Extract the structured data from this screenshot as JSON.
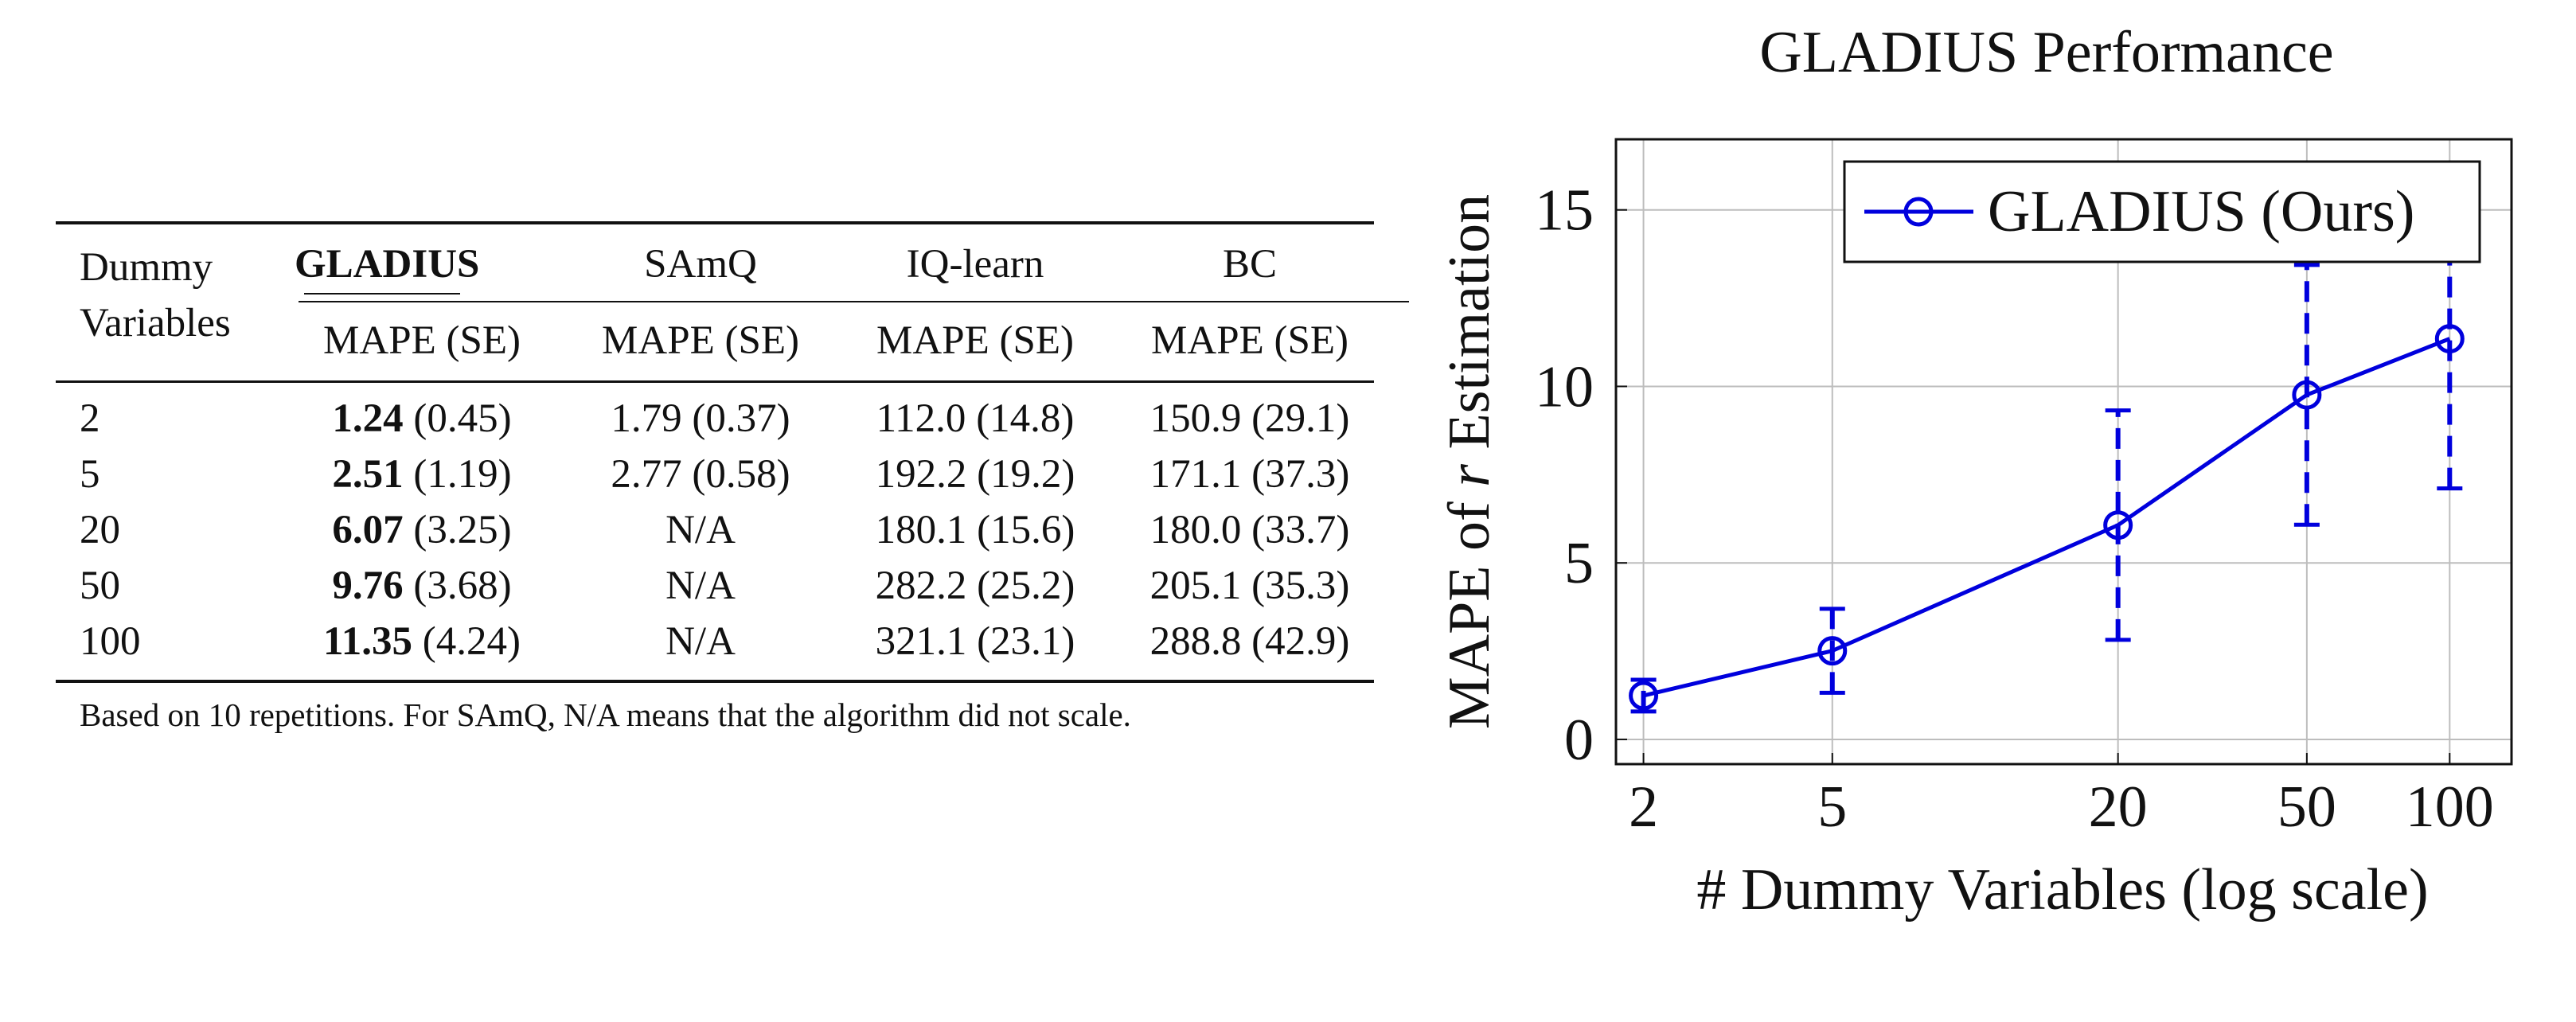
{
  "table": {
    "header_col0_line1": "Dummy",
    "header_col0_line2": "Variables",
    "methods": [
      "GLADIUS",
      "SAmQ",
      "IQ-learn",
      "BC"
    ],
    "metric": "MAPE (SE)",
    "rows": [
      {
        "dummy": "2",
        "cells": [
          {
            "v": "1.24",
            "se": "(0.45)"
          },
          {
            "v": "1.79",
            "se": "(0.37)"
          },
          {
            "v": "112.0",
            "se": "(14.8)"
          },
          {
            "v": "150.9",
            "se": "(29.1)"
          }
        ]
      },
      {
        "dummy": "5",
        "cells": [
          {
            "v": "2.51",
            "se": "(1.19)"
          },
          {
            "v": "2.77",
            "se": "(0.58)"
          },
          {
            "v": "192.2",
            "se": "(19.2)"
          },
          {
            "v": "171.1",
            "se": "(37.3)"
          }
        ]
      },
      {
        "dummy": "20",
        "cells": [
          {
            "v": "6.07",
            "se": "(3.25)"
          },
          {
            "v": "N/A",
            "se": ""
          },
          {
            "v": "180.1",
            "se": "(15.6)"
          },
          {
            "v": "180.0",
            "se": "(33.7)"
          }
        ]
      },
      {
        "dummy": "50",
        "cells": [
          {
            "v": "9.76",
            "se": "(3.68)"
          },
          {
            "v": "N/A",
            "se": ""
          },
          {
            "v": "282.2",
            "se": "(25.2)"
          },
          {
            "v": "205.1",
            "se": "(35.3)"
          }
        ]
      },
      {
        "dummy": "100",
        "cells": [
          {
            "v": "11.35",
            "se": "(4.24)"
          },
          {
            "v": "N/A",
            "se": ""
          },
          {
            "v": "321.1",
            "se": "(23.1)"
          },
          {
            "v": "288.8",
            "se": "(42.9)"
          }
        ]
      }
    ],
    "footnote": "Based on 10 repetitions. For SAmQ, N/A means that the algorithm did not scale."
  },
  "chart_data": {
    "type": "line",
    "title": "GLADIUS Performance",
    "xlabel": "# Dummy Variables (log scale)",
    "ylabel_prefix": "MAPE of ",
    "ylabel_var": "r",
    "ylabel_suffix": " Estimation",
    "x_scale": "log",
    "xticks": [
      2,
      5,
      20,
      50,
      100
    ],
    "yticks": [
      0,
      5,
      10,
      15
    ],
    "xlim": [
      1.75,
      135
    ],
    "ylim": [
      -0.7,
      17
    ],
    "grid": true,
    "legend_position": "top-right",
    "series": [
      {
        "name": "GLADIUS (Ours)",
        "color": "#0000dd",
        "x": [
          2,
          5,
          20,
          50,
          100
        ],
        "y": [
          1.24,
          2.51,
          6.07,
          9.76,
          11.35
        ],
        "err_low": [
          0.79,
          1.32,
          2.82,
          6.08,
          7.11
        ],
        "err_high": [
          1.69,
          3.7,
          9.32,
          13.44,
          15.59
        ]
      }
    ]
  }
}
